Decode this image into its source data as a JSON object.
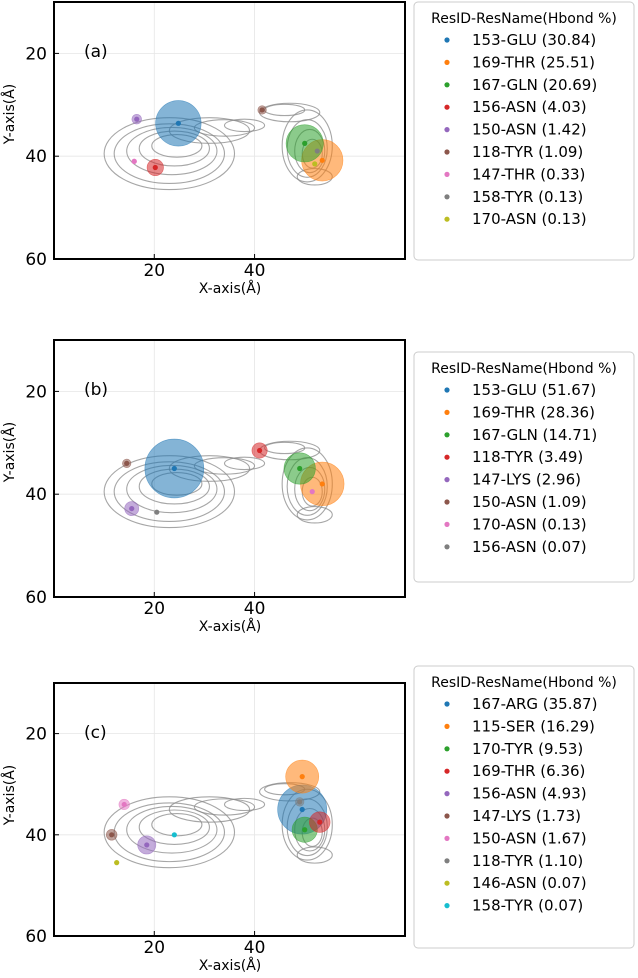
{
  "chart_data": [
    {
      "type": "scatter",
      "panel_label": "(a)",
      "xlabel": "X-axis(Å)",
      "ylabel": "Y-axis(Å)",
      "xlim": [
        0,
        70
      ],
      "ylim": [
        60,
        10
      ],
      "xticks": [
        20,
        40
      ],
      "yticks": [
        20,
        40,
        60
      ],
      "grid": true,
      "legend_position": "right",
      "legend_title": "ResID-ResName(Hbond %)",
      "series": [
        {
          "name": "153-GLU (30.84)",
          "color": "#1f77b4",
          "x": 24.8,
          "y": 33.6,
          "hbond": 30.84
        },
        {
          "name": "169-THR (25.51)",
          "color": "#ff7f0e",
          "x": 53.5,
          "y": 40.8,
          "hbond": 25.51
        },
        {
          "name": "167-GLN (20.69)",
          "color": "#2ca02c",
          "x": 50.0,
          "y": 37.5,
          "hbond": 20.69
        },
        {
          "name": "156-ASN (4.03)",
          "color": "#d62728",
          "x": 20.2,
          "y": 42.2,
          "hbond": 4.03
        },
        {
          "name": "150-ASN (1.42)",
          "color": "#9467bd",
          "x": 16.5,
          "y": 32.8,
          "hbond": 1.42
        },
        {
          "name": "118-TYR (1.09)",
          "color": "#8c564b",
          "x": 41.5,
          "y": 31.0,
          "hbond": 1.09
        },
        {
          "name": "147-THR (0.33)",
          "color": "#e377c2",
          "x": 16.0,
          "y": 41.0,
          "hbond": 0.33
        },
        {
          "name": "158-TYR (0.13)",
          "color": "#7f7f7f",
          "x": 52.5,
          "y": 39.0,
          "hbond": 0.13
        },
        {
          "name": "170-ASN (0.13)",
          "color": "#bcbd22",
          "x": 52.0,
          "y": 41.5,
          "hbond": 0.13
        }
      ]
    },
    {
      "type": "scatter",
      "panel_label": "(b)",
      "xlabel": "X-axis(Å)",
      "ylabel": "Y-axis(Å)",
      "xlim": [
        0,
        70
      ],
      "ylim": [
        60,
        10
      ],
      "xticks": [
        20,
        40
      ],
      "yticks": [
        20,
        40,
        60
      ],
      "grid": true,
      "legend_position": "right",
      "legend_title": "ResID-ResName(Hbond %)",
      "series": [
        {
          "name": "153-GLU (51.67)",
          "color": "#1f77b4",
          "x": 24.0,
          "y": 35.0,
          "hbond": 51.67
        },
        {
          "name": "169-THR (28.36)",
          "color": "#ff7f0e",
          "x": 53.5,
          "y": 38.0,
          "hbond": 28.36
        },
        {
          "name": "167-GLN (14.71)",
          "color": "#2ca02c",
          "x": 49.0,
          "y": 35.0,
          "hbond": 14.71
        },
        {
          "name": "118-TYR (3.49)",
          "color": "#d62728",
          "x": 41.0,
          "y": 31.5,
          "hbond": 3.49
        },
        {
          "name": "147-LYS (2.96)",
          "color": "#9467bd",
          "x": 15.5,
          "y": 42.8,
          "hbond": 2.96
        },
        {
          "name": "150-ASN (1.09)",
          "color": "#8c564b",
          "x": 14.5,
          "y": 34.0,
          "hbond": 1.09
        },
        {
          "name": "170-ASN (0.13)",
          "color": "#e377c2",
          "x": 51.5,
          "y": 39.5,
          "hbond": 0.13
        },
        {
          "name": "156-ASN (0.07)",
          "color": "#7f7f7f",
          "x": 20.5,
          "y": 43.5,
          "hbond": 0.07
        }
      ]
    },
    {
      "type": "scatter",
      "panel_label": "(c)",
      "xlabel": "X-axis(Å)",
      "ylabel": "Y-axis(Å)",
      "xlim": [
        0,
        70
      ],
      "ylim": [
        60,
        10
      ],
      "xticks": [
        20,
        40
      ],
      "yticks": [
        20,
        40,
        60
      ],
      "grid": true,
      "legend_position": "right",
      "legend_title": "ResID-ResName(Hbond %)",
      "series": [
        {
          "name": "167-ARG (35.87)",
          "color": "#1f77b4",
          "x": 49.5,
          "y": 35.0,
          "hbond": 35.87
        },
        {
          "name": "115-SER (16.29)",
          "color": "#ff7f0e",
          "x": 49.5,
          "y": 28.5,
          "hbond": 16.29
        },
        {
          "name": "170-TYR (9.53)",
          "color": "#2ca02c",
          "x": 50.0,
          "y": 39.0,
          "hbond": 9.53
        },
        {
          "name": "169-THR (6.36)",
          "color": "#d62728",
          "x": 53.0,
          "y": 37.5,
          "hbond": 6.36
        },
        {
          "name": "156-ASN (4.93)",
          "color": "#9467bd",
          "x": 18.5,
          "y": 42.0,
          "hbond": 4.93
        },
        {
          "name": "147-LYS (1.73)",
          "color": "#8c564b",
          "x": 11.5,
          "y": 40.0,
          "hbond": 1.73
        },
        {
          "name": "150-ASN (1.67)",
          "color": "#e377c2",
          "x": 14.0,
          "y": 34.0,
          "hbond": 1.67
        },
        {
          "name": "118-TYR (1.10)",
          "color": "#7f7f7f",
          "x": 49.0,
          "y": 33.5,
          "hbond": 1.1
        },
        {
          "name": "146-ASN (0.07)",
          "color": "#bcbd22",
          "x": 12.5,
          "y": 45.5,
          "hbond": 0.07
        },
        {
          "name": "158-TYR (0.07)",
          "color": "#17becf",
          "x": 24.0,
          "y": 40.0,
          "hbond": 0.07
        }
      ]
    }
  ]
}
